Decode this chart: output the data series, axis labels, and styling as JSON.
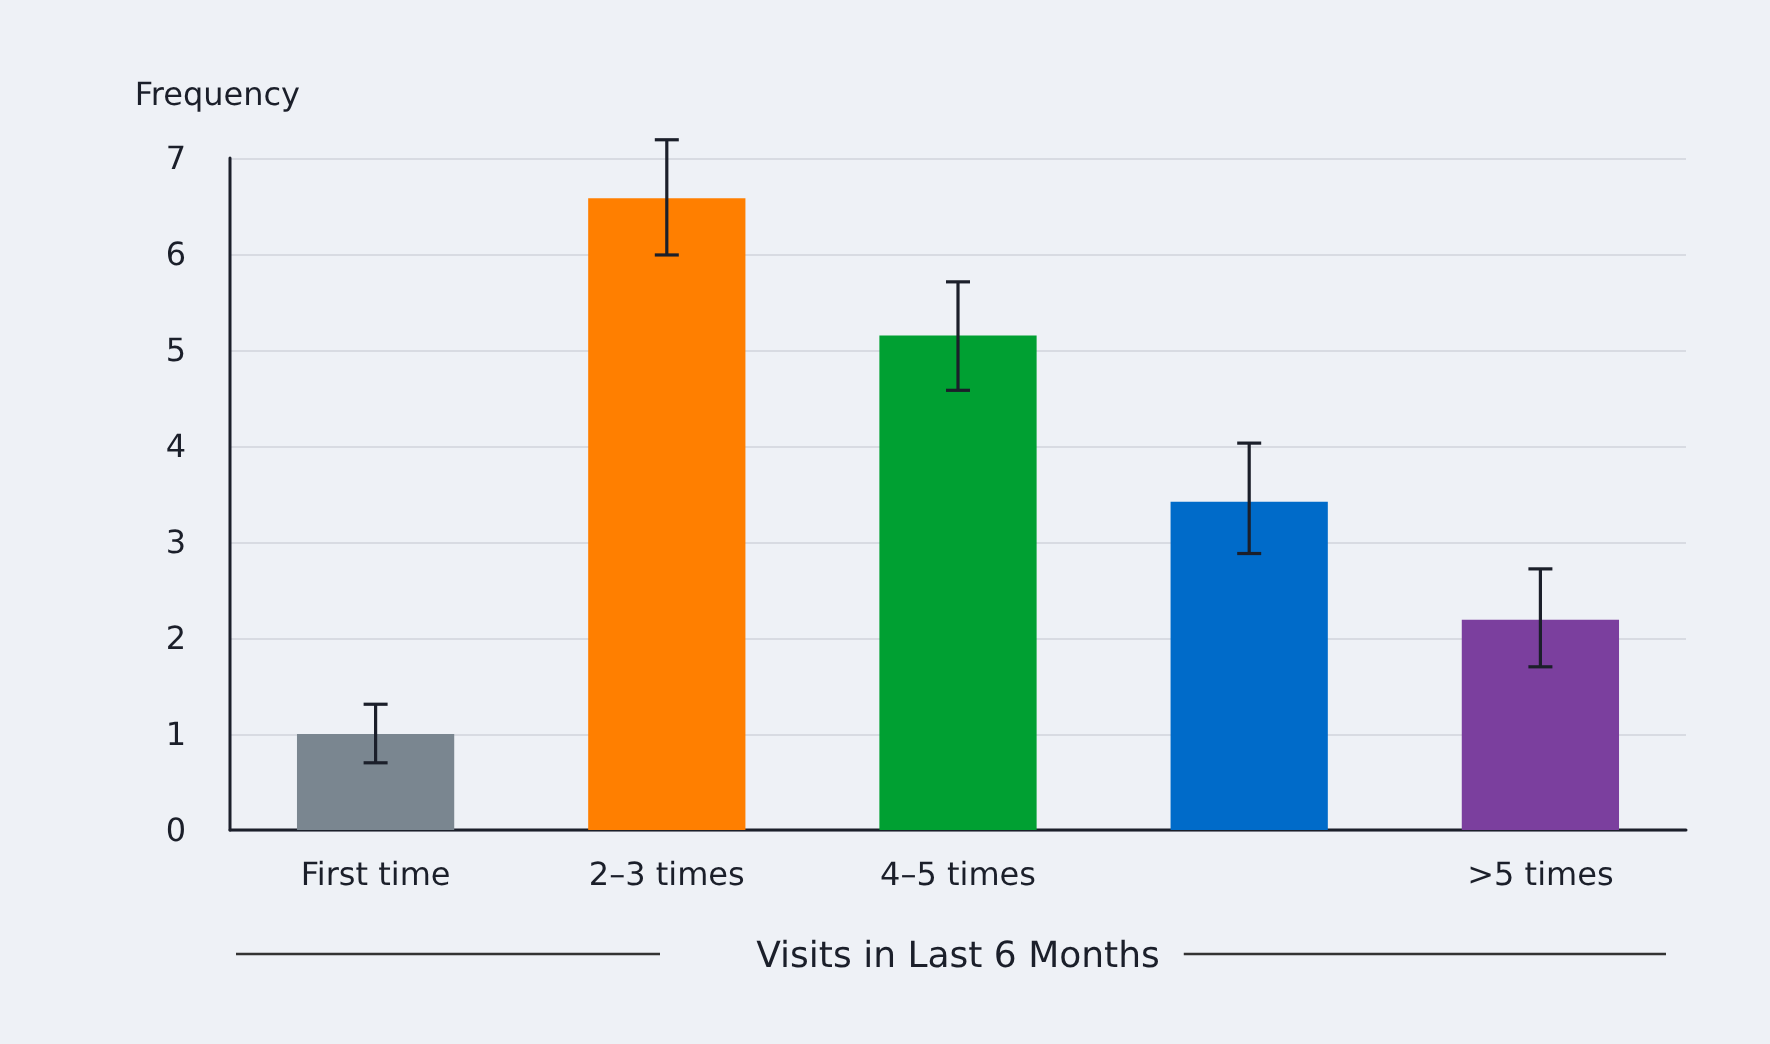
{
  "chart_data": {
    "type": "bar",
    "ylabel": "Frequency",
    "xlabel": "Visits in Last 6 Months",
    "categories": [
      "First time",
      "2–3 times",
      "4–5 times",
      null,
      ">5 times"
    ],
    "values": [
      1.0,
      6.58,
      5.15,
      3.42,
      2.19
    ],
    "colors": [
      "#7a8690",
      "#ff7f00",
      "#00a032",
      "#006bc9",
      "#7b3f9e"
    ],
    "errors": [
      [
        0.7,
        1.31
      ],
      [
        5.99,
        7.19
      ],
      [
        4.58,
        5.71
      ],
      [
        2.88,
        4.03
      ],
      [
        1.7,
        2.72
      ]
    ],
    "ylim": [
      0,
      7
    ],
    "yticks": [
      0,
      1,
      2,
      3,
      4,
      5,
      6,
      7
    ],
    "grid": "y"
  }
}
